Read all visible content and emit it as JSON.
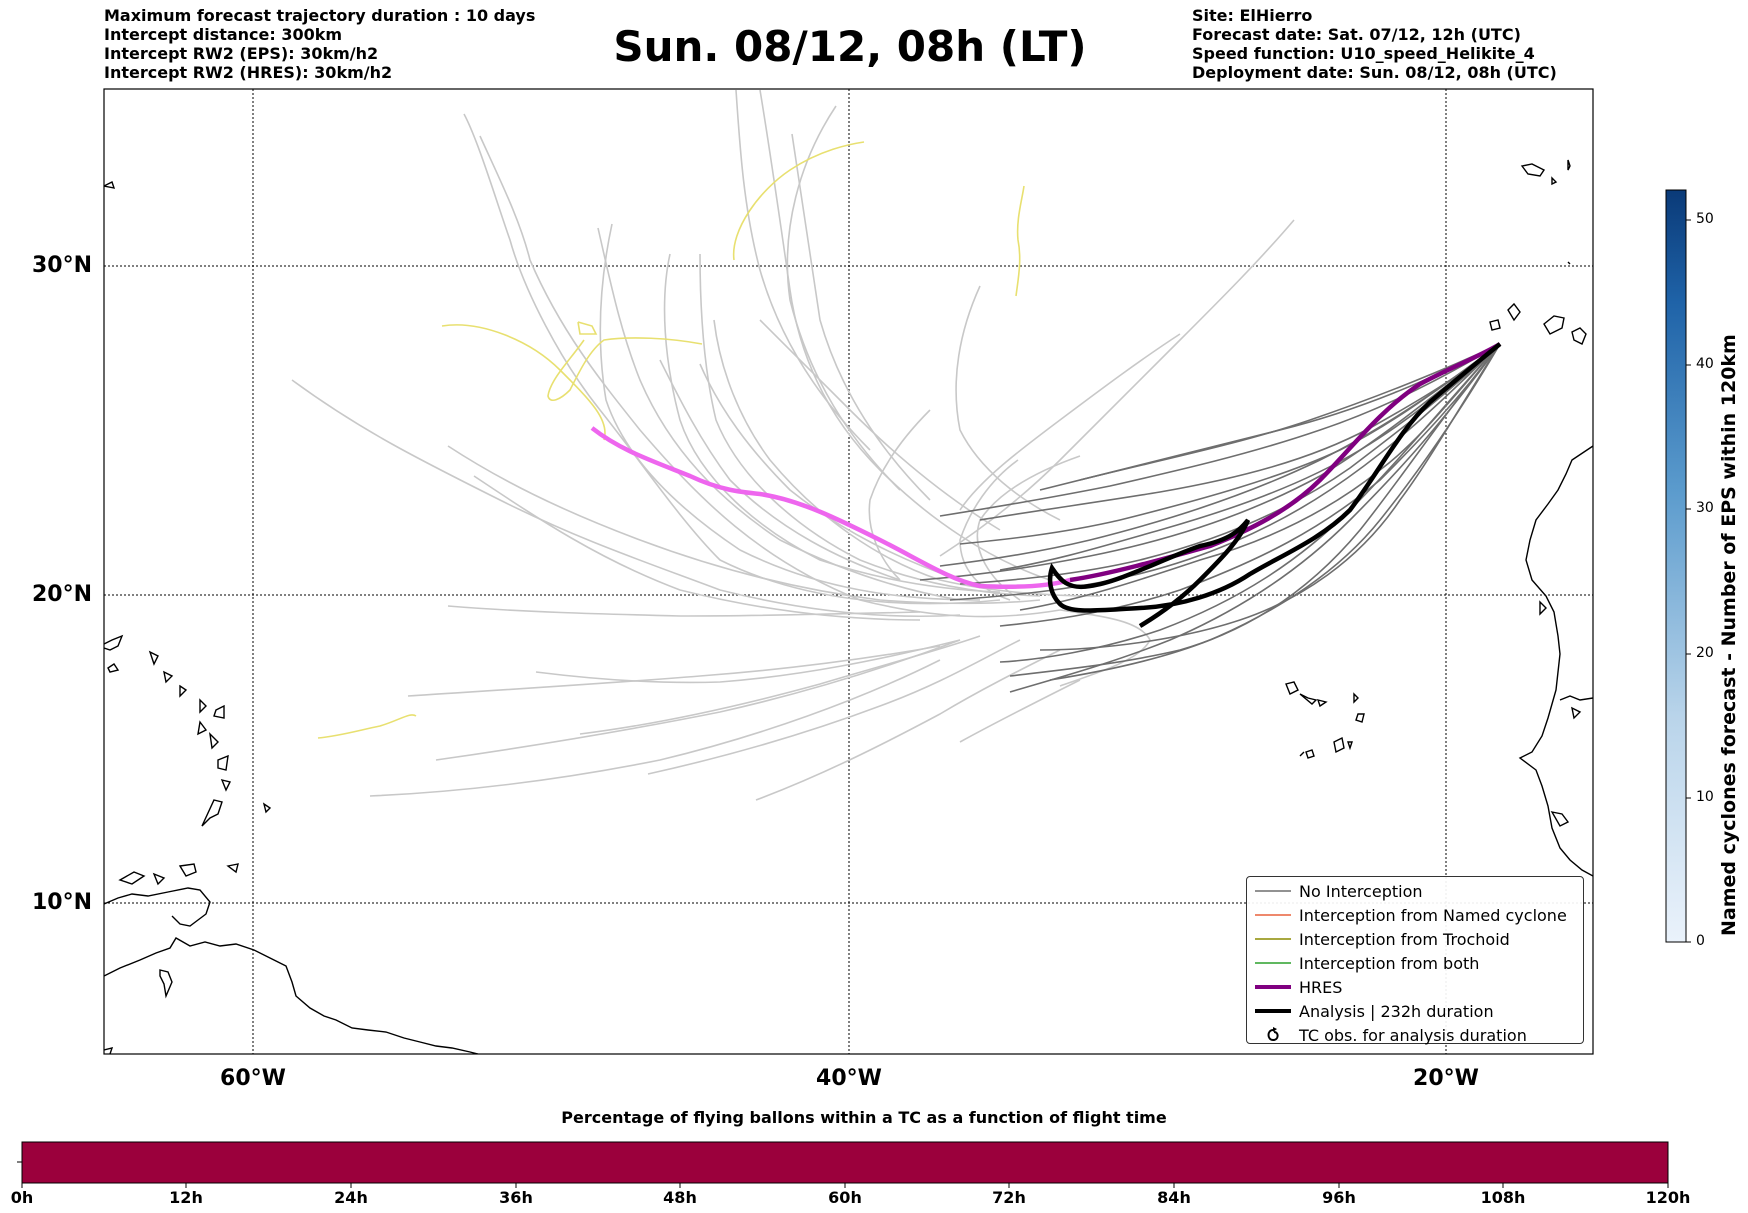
{
  "header": {
    "left_lines": [
      "Maximum forecast trajectory duration : 10 days",
      "Intercept distance: 300km",
      "Intercept RW2 (EPS):  30km/h2",
      "Intercept RW2 (HRES): 30km/h2"
    ],
    "title": "Sun. 08/12, 08h (LT)",
    "right_lines": [
      "Site: ElHierro",
      "Forecast date: Sat. 07/12, 12h (UTC)",
      "Speed function: U10_speed_Helikite_4",
      "Deployment date: Sun. 08/12, 08h (UTC)"
    ]
  },
  "map": {
    "lat_labels": [
      "30°N",
      "20°N",
      "10°N"
    ],
    "lon_labels": [
      "60°W",
      "40°W",
      "20°W"
    ],
    "colors": {
      "no_interception": "#6e6e6e",
      "faded_trajectory": "#c8c8c8",
      "named_cyclone": "#e8603c",
      "trochoid": "#8b8b00",
      "both": "#2ca02c",
      "hres": "#800080",
      "hres_faded": "#ee66ee",
      "analysis": "#000000",
      "yellow_track": "#e8e070"
    }
  },
  "legend": {
    "items": [
      {
        "label": "No Interception",
        "icon": "thin-grey-line"
      },
      {
        "label": "Interception from Named cyclone",
        "icon": "thin-red-line"
      },
      {
        "label": "Interception from Trochoid",
        "icon": "thin-olive-line"
      },
      {
        "label": "Interception from both",
        "icon": "thin-green-line"
      },
      {
        "label": "HRES",
        "icon": "thick-purple-line"
      },
      {
        "label": "Analysis | 232h duration",
        "icon": "thick-black-line"
      },
      {
        "label": "TC obs. for analysis duration",
        "icon": "cyclone-symbol-icon"
      }
    ]
  },
  "colorbar": {
    "title": "Named cyclones forecast - Number of EPS within 120km",
    "ticks": [
      "0",
      "10",
      "20",
      "30",
      "40",
      "50"
    ]
  },
  "timebar": {
    "title": "Percentage of flying ballons within a TC as a function of flight time",
    "ticks": [
      "0h",
      "12h",
      "24h",
      "36h",
      "48h",
      "60h",
      "72h",
      "84h",
      "96h",
      "108h",
      "120h"
    ],
    "fill_color": "#9b003c"
  }
}
